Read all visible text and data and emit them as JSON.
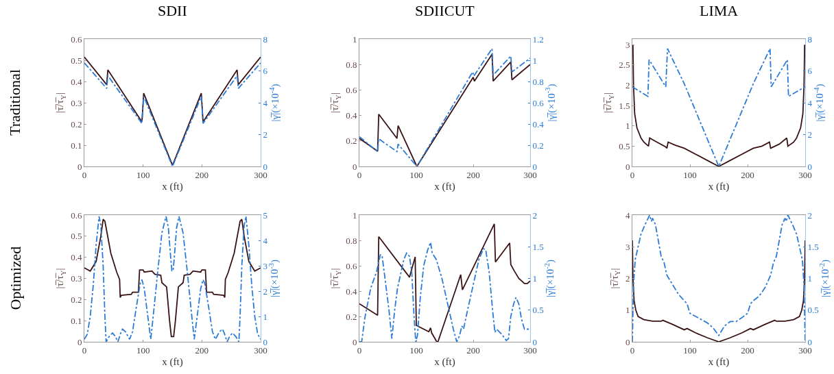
{
  "chart_data": [
    {
      "type": "line",
      "title": "SDII",
      "annotations": [
        "Traditional"
      ],
      "xlabel": "x (ft)",
      "ylabel": "|τ̅/τ̅$_{Y}$|",
      "y2label": "|γ̅|(×10$^{-4}$)",
      "xlim": [
        0,
        300
      ],
      "xticks": [
        0,
        100,
        200,
        300
      ],
      "ylim": [
        0,
        0.6
      ],
      "yticks": [
        0,
        0.1,
        0.2,
        0.3,
        0.4,
        0.5,
        0.6
      ],
      "y2lim": [
        0,
        8
      ],
      "y2ticks": [
        0,
        2,
        4,
        6,
        8
      ],
      "series": [
        {
          "color": "#3a1214",
          "line_style": "solid",
          "x": [
            0,
            38,
            40,
            98,
            101,
            150,
            199,
            202,
            260,
            262,
            300
          ],
          "values": [
            0.515,
            0.385,
            0.455,
            0.21,
            0.345,
            0.005,
            0.345,
            0.21,
            0.455,
            0.385,
            0.515
          ]
        },
        {
          "color": "#2b7bd6",
          "line_style": "dashed",
          "axis": "y2",
          "x": [
            0,
            38,
            40,
            98,
            101,
            150,
            199,
            202,
            260,
            262,
            300
          ],
          "values": [
            6.5,
            4.9,
            5.7,
            2.7,
            4.4,
            0,
            4.4,
            2.7,
            5.7,
            4.9,
            6.5
          ]
        }
      ]
    },
    {
      "type": "line",
      "title": "SDIICUT",
      "xlabel": "x (ft)",
      "ylabel": "|τ̅/τ̅$_{Y}$|",
      "y2label": "|γ̅|(×10$^{-3}$)",
      "xlim": [
        0,
        300
      ],
      "xticks": [
        0,
        100,
        200,
        300
      ],
      "ylim": [
        0,
        1
      ],
      "yticks": [
        0,
        0.2,
        0.4,
        0.6,
        0.8,
        1
      ],
      "y2lim": [
        0,
        1.2
      ],
      "y2ticks": [
        0,
        0.2,
        0.4,
        0.6,
        0.8,
        1,
        1.2
      ],
      "series": [
        {
          "color": "#3a1214",
          "line_style": "solid",
          "x": [
            0,
            32,
            34,
            66,
            68,
            101,
            200,
            202,
            233,
            235,
            266,
            268,
            300
          ],
          "values": [
            0.22,
            0.12,
            0.41,
            0.22,
            0.32,
            0,
            0.7,
            0.67,
            0.88,
            0.67,
            0.82,
            0.68,
            0.8
          ]
        },
        {
          "color": "#2b7bd6",
          "line_style": "dashed",
          "axis": "y2",
          "x": [
            0,
            32,
            34,
            66,
            68,
            101,
            199,
            201,
            233,
            235,
            266,
            268,
            300
          ],
          "values": [
            0.28,
            0.14,
            0.26,
            0.14,
            0.21,
            0,
            0.89,
            0.85,
            1.11,
            0.86,
            1.04,
            0.89,
            1.02
          ]
        }
      ]
    },
    {
      "type": "line",
      "title": "LIMA",
      "xlabel": "x (ft)",
      "ylabel": "|τ̅/τ̅$_{Y}$|",
      "y2label": "|γ̅|(×10$^{-4}$)",
      "xlim": [
        0,
        300
      ],
      "xticks": [
        0,
        100,
        200,
        300
      ],
      "ylim": [
        0,
        3.14
      ],
      "yticks": [
        0,
        0.5,
        1,
        1.5,
        2,
        2.5,
        3
      ],
      "y2lim": [
        0,
        8
      ],
      "y2ticks": [
        0,
        2,
        4,
        6,
        8
      ],
      "series": [
        {
          "color": "#3a1214",
          "line_style": "solid",
          "x": [
            1,
            2,
            4,
            8,
            15,
            20,
            28,
            30,
            40,
            58,
            60,
            62,
            75,
            90,
            110,
            130,
            150,
            170,
            190,
            210,
            225,
            238,
            240,
            255,
            268,
            270,
            280,
            285,
            292,
            296,
            298,
            299
          ],
          "values": [
            3.0,
            2.0,
            1.3,
            0.95,
            0.7,
            0.6,
            0.5,
            0.7,
            0.62,
            0.48,
            0.45,
            0.6,
            0.52,
            0.45,
            0.3,
            0.15,
            0,
            0.15,
            0.3,
            0.45,
            0.5,
            0.6,
            0.45,
            0.55,
            0.7,
            0.5,
            0.6,
            0.7,
            0.95,
            1.3,
            2.0,
            3.0
          ]
        },
        {
          "color": "#2b7bd6",
          "line_style": "dashed",
          "axis": "y2",
          "x": [
            0,
            27,
            29,
            58,
            61,
            90,
            150,
            210,
            239,
            241,
            269,
            271,
            300
          ],
          "values": [
            5.0,
            4.4,
            6.7,
            5.0,
            7.4,
            5.2,
            0,
            5.2,
            7.4,
            5.0,
            6.7,
            4.4,
            5.0
          ]
        }
      ]
    },
    {
      "type": "line",
      "annotations": [
        "Optimized"
      ],
      "xlabel": "x (ft)",
      "ylabel": "|τ̅/τ̅$_{Y}$|",
      "y2label": "|γ̅|(×10$^{-3}$)",
      "xlim": [
        0,
        300
      ],
      "xticks": [
        0,
        100,
        200,
        300
      ],
      "ylim": [
        0,
        0.6
      ],
      "yticks": [
        0,
        0.1,
        0.2,
        0.3,
        0.4,
        0.5,
        0.6
      ],
      "y2lim": [
        0,
        5
      ],
      "y2ticks": [
        0,
        1,
        2,
        3,
        4,
        5
      ],
      "series": [
        {
          "color": "#3a1214",
          "line_style": "solid",
          "x": [
            0,
            10,
            20,
            28,
            32,
            35,
            45,
            55,
            60,
            61,
            63,
            80,
            82,
            92,
            94,
            100,
            102,
            115,
            120,
            130,
            132,
            140,
            145,
            148,
            152,
            155,
            160,
            168,
            170,
            180,
            185,
            198,
            200,
            206,
            208,
            218,
            220,
            237,
            239,
            240,
            245,
            255,
            265,
            268,
            272,
            280,
            290,
            300
          ],
          "values": [
            0.35,
            0.335,
            0.38,
            0.5,
            0.58,
            0.57,
            0.42,
            0.33,
            0.295,
            0.21,
            0.22,
            0.225,
            0.235,
            0.235,
            0.34,
            0.34,
            0.33,
            0.335,
            0.32,
            0.315,
            0.28,
            0.26,
            0.1,
            0.025,
            0.025,
            0.1,
            0.26,
            0.28,
            0.315,
            0.32,
            0.335,
            0.33,
            0.34,
            0.34,
            0.235,
            0.235,
            0.225,
            0.22,
            0.21,
            0.295,
            0.33,
            0.42,
            0.57,
            0.58,
            0.5,
            0.38,
            0.335,
            0.35
          ]
        },
        {
          "color": "#2b7bd6",
          "line_style": "dashed",
          "axis": "y2",
          "x": [
            0,
            5,
            10,
            15,
            20,
            25,
            28,
            32,
            35,
            37,
            42,
            48,
            53,
            57,
            62,
            65,
            70,
            77,
            82,
            88,
            95,
            98,
            102,
            108,
            113,
            118,
            125,
            132,
            139,
            143,
            147,
            149,
            151,
            153,
            157,
            161,
            168,
            175,
            182,
            187,
            192,
            198,
            202,
            205,
            212,
            218,
            223,
            230,
            235,
            238,
            243,
            247,
            252,
            258,
            263,
            265,
            268,
            272,
            275,
            280,
            285,
            290,
            295,
            300
          ],
          "values": [
            0.1,
            0.3,
            1.0,
            2.2,
            3.8,
            4.95,
            4.6,
            3.0,
            1.0,
            0,
            0.2,
            0.35,
            0.2,
            0,
            0.35,
            0.5,
            0.4,
            0.1,
            0.4,
            1.3,
            2.3,
            2.45,
            2.1,
            1.0,
            0.1,
            1.2,
            2.8,
            4.3,
            4.95,
            4.5,
            3.3,
            2.8,
            2.8,
            3.3,
            4.5,
            4.95,
            4.3,
            2.8,
            1.2,
            0.1,
            1.0,
            2.1,
            2.45,
            2.3,
            1.3,
            0.4,
            0.1,
            0.4,
            0.5,
            0.35,
            0,
            0.2,
            0.35,
            0.2,
            0,
            1.0,
            3.0,
            4.6,
            4.95,
            3.8,
            2.2,
            1.0,
            0.3,
            0.1
          ]
        }
      ]
    },
    {
      "type": "line",
      "xlabel": "x (ft)",
      "ylabel": "|τ̅/τ̅$_{Y}$|",
      "y2label": "|γ̅|(×10$^{-2}$)",
      "xlim": [
        0,
        300
      ],
      "xticks": [
        0,
        100,
        200,
        300
      ],
      "ylim": [
        0,
        1
      ],
      "yticks": [
        0,
        0.2,
        0.4,
        0.6,
        0.8,
        1
      ],
      "y2lim": [
        0,
        2
      ],
      "y2ticks": [
        0,
        0.5,
        1,
        1.5,
        2
      ],
      "series": [
        {
          "color": "#3a1214",
          "line_style": "solid",
          "x": [
            0,
            32,
            34,
            88,
            98,
            100,
            122,
            125,
            127,
            136,
            138,
            178,
            181,
            237,
            239,
            264,
            266,
            272,
            280,
            290,
            295,
            300
          ],
          "values": [
            0.3,
            0.21,
            0.83,
            0.51,
            0.67,
            0.13,
            0.08,
            0.11,
            0.07,
            0,
            0,
            0.53,
            0.41,
            0.93,
            0.63,
            0.78,
            0.61,
            0.56,
            0.5,
            0.46,
            0.46,
            0.48
          ]
        },
        {
          "color": "#2b7bd6",
          "line_style": "dashed",
          "axis": "y2",
          "x": [
            0,
            4,
            10,
            20,
            30,
            37,
            40,
            45,
            52,
            57,
            62,
            67,
            72,
            78,
            83,
            88,
            92,
            96,
            99,
            102,
            107,
            113,
            120,
            125,
            128,
            135,
            145,
            155,
            165,
            171,
            176,
            180,
            183,
            190,
            200,
            210,
            218,
            222,
            228,
            234,
            238,
            241,
            250,
            258,
            262,
            266,
            271,
            275,
            280,
            285,
            290,
            300
          ],
          "values": [
            0,
            0,
            0.4,
            0.85,
            1.1,
            1.38,
            1.35,
            1.0,
            0.5,
            0.05,
            0.5,
            0.85,
            1.05,
            1.3,
            1.4,
            1.35,
            1.1,
            0.4,
            0,
            0.1,
            0.7,
            1.2,
            1.45,
            1.57,
            1.4,
            1.3,
            1.0,
            0.6,
            0.2,
            0,
            0.1,
            0.25,
            0.2,
            0.5,
            0.9,
            1.3,
            1.47,
            1.45,
            1.1,
            0.5,
            0.15,
            0.2,
            0.12,
            0.02,
            0.05,
            0.4,
            0.6,
            0.7,
            0.6,
            0.35,
            0.2,
            0.2
          ]
        }
      ]
    },
    {
      "type": "line",
      "xlabel": "x (ft)",
      "ylabel": "|τ̅/τ̅$_{Y}$|",
      "y2label": "|γ̅|(×10$^{-2}$)",
      "xlim": [
        0,
        300
      ],
      "xticks": [
        0,
        100,
        200,
        300
      ],
      "ylim": [
        0,
        4
      ],
      "yticks": [
        0,
        1,
        2,
        3,
        4
      ],
      "y2lim": [
        0,
        2
      ],
      "y2ticks": [
        0,
        0.5,
        1,
        1.5,
        2
      ],
      "series": [
        {
          "color": "#3a1214",
          "line_style": "solid",
          "x": [
            0,
            1,
            3,
            6,
            10,
            20,
            35,
            50,
            53,
            70,
            90,
            95,
            110,
            130,
            150,
            170,
            190,
            205,
            210,
            230,
            247,
            250,
            265,
            280,
            290,
            294,
            297,
            299,
            300
          ],
          "values": [
            3.2,
            2.0,
            1.3,
            1.0,
            0.8,
            0.7,
            0.65,
            0.65,
            0.68,
            0.55,
            0.38,
            0.42,
            0.28,
            0.13,
            0,
            0.13,
            0.28,
            0.42,
            0.38,
            0.55,
            0.68,
            0.65,
            0.65,
            0.7,
            0.8,
            1.0,
            1.3,
            2.0,
            3.2
          ]
        },
        {
          "color": "#2b7bd6",
          "line_style": "dashed",
          "axis": "y2",
          "x": [
            0,
            2,
            5,
            10,
            15,
            22,
            30,
            33,
            35,
            40,
            45,
            50,
            55,
            60,
            70,
            80,
            90,
            95,
            100,
            110,
            120,
            130,
            140,
            150,
            160,
            170,
            180,
            190,
            200,
            205,
            210,
            220,
            230,
            240,
            245,
            250,
            255,
            260,
            265,
            267,
            270,
            278,
            285,
            290,
            295,
            298,
            300
          ],
          "values": [
            0,
            0.9,
            1.3,
            1.5,
            1.7,
            1.85,
            2.0,
            1.9,
            1.95,
            1.85,
            1.6,
            1.35,
            1.25,
            1.05,
            0.9,
            0.75,
            0.65,
            0.6,
            0.45,
            0.4,
            0.35,
            0.3,
            0.22,
            0.1,
            0.25,
            0.32,
            0.32,
            0.38,
            0.45,
            0.6,
            0.65,
            0.72,
            0.85,
            1.05,
            1.25,
            1.35,
            1.6,
            1.85,
            1.95,
            1.9,
            2.0,
            1.85,
            1.7,
            1.5,
            1.3,
            0.9,
            0
          ]
        }
      ]
    }
  ]
}
